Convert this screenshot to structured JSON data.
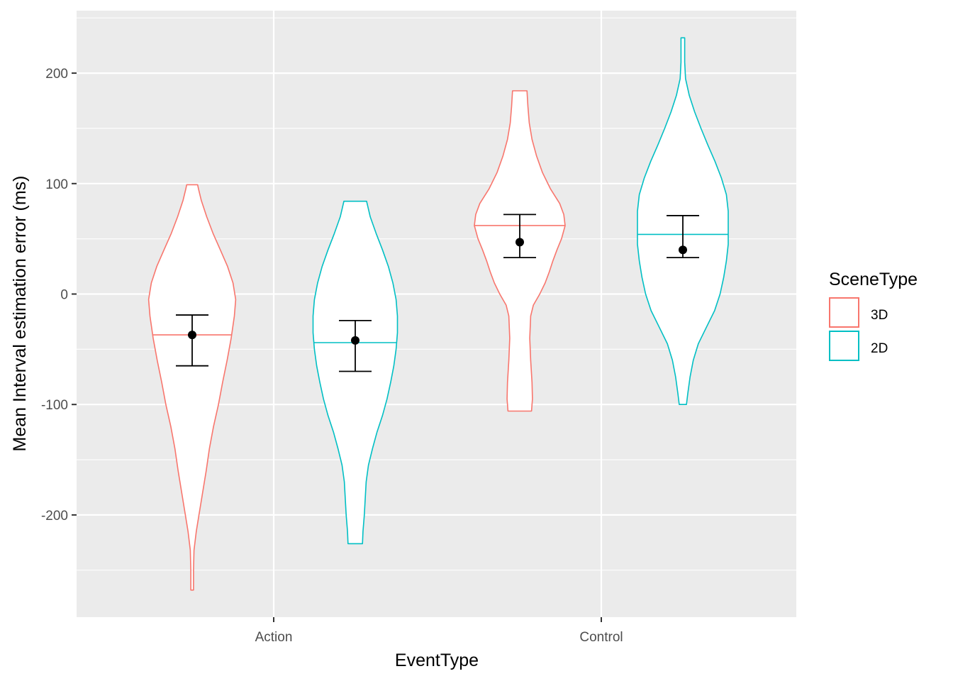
{
  "chart_data": {
    "type": "violin",
    "xlabel": "EventType",
    "ylabel": "Mean Interval estimation error (ms)",
    "categories": [
      "Action",
      "Control"
    ],
    "ylim": [
      -290,
      250
    ],
    "yticks": [
      -200,
      -100,
      0,
      100,
      200
    ],
    "grid": true,
    "legend": {
      "title": "SceneType",
      "position": "right",
      "entries": [
        {
          "label": "3D",
          "color": "#F8766D"
        },
        {
          "label": "2D",
          "color": "#00BFC4"
        }
      ]
    },
    "series": [
      {
        "name": "3D",
        "color": "#F8766D",
        "groups": [
          {
            "category": "Action",
            "min": -268,
            "max": 99,
            "median": -37,
            "mean": -37,
            "ci_low": -65,
            "ci_high": -19,
            "density": [
              [
                -268,
                0.03
              ],
              [
                -250,
                0.03
              ],
              [
                -232,
                0.04
              ],
              [
                -215,
                0.09
              ],
              [
                -200,
                0.15
              ],
              [
                -180,
                0.23
              ],
              [
                -160,
                0.31
              ],
              [
                -140,
                0.38
              ],
              [
                -120,
                0.47
              ],
              [
                -100,
                0.58
              ],
              [
                -80,
                0.67
              ],
              [
                -60,
                0.77
              ],
              [
                -40,
                0.86
              ],
              [
                -20,
                0.93
              ],
              [
                -5,
                0.96
              ],
              [
                10,
                0.9
              ],
              [
                25,
                0.78
              ],
              [
                40,
                0.62
              ],
              [
                55,
                0.46
              ],
              [
                70,
                0.32
              ],
              [
                85,
                0.2
              ],
              [
                95,
                0.14
              ],
              [
                99,
                0.12
              ]
            ]
          },
          {
            "category": "Control",
            "min": -106,
            "max": 184,
            "median": 62,
            "mean": 47,
            "ci_low": 33,
            "ci_high": 72,
            "density": [
              [
                -106,
                0.26
              ],
              [
                -95,
                0.28
              ],
              [
                -80,
                0.27
              ],
              [
                -60,
                0.24
              ],
              [
                -40,
                0.22
              ],
              [
                -20,
                0.24
              ],
              [
                -10,
                0.3
              ],
              [
                0,
                0.44
              ],
              [
                10,
                0.56
              ],
              [
                20,
                0.65
              ],
              [
                30,
                0.73
              ],
              [
                40,
                0.82
              ],
              [
                50,
                0.92
              ],
              [
                62,
                1.0
              ],
              [
                72,
                0.97
              ],
              [
                82,
                0.88
              ],
              [
                95,
                0.68
              ],
              [
                110,
                0.5
              ],
              [
                125,
                0.37
              ],
              [
                140,
                0.27
              ],
              [
                155,
                0.21
              ],
              [
                170,
                0.18
              ],
              [
                184,
                0.16
              ]
            ]
          }
        ]
      },
      {
        "name": "2D",
        "color": "#00BFC4",
        "groups": [
          {
            "category": "Action",
            "min": -226,
            "max": 84,
            "median": -44,
            "mean": -42,
            "ci_low": -70,
            "ci_high": -24,
            "density": [
              [
                -226,
                0.16
              ],
              [
                -215,
                0.17
              ],
              [
                -200,
                0.2
              ],
              [
                -185,
                0.22
              ],
              [
                -170,
                0.24
              ],
              [
                -155,
                0.29
              ],
              [
                -140,
                0.38
              ],
              [
                -125,
                0.48
              ],
              [
                -110,
                0.6
              ],
              [
                -95,
                0.7
              ],
              [
                -80,
                0.78
              ],
              [
                -65,
                0.85
              ],
              [
                -50,
                0.9
              ],
              [
                -35,
                0.93
              ],
              [
                -20,
                0.93
              ],
              [
                -5,
                0.9
              ],
              [
                10,
                0.83
              ],
              [
                25,
                0.73
              ],
              [
                40,
                0.6
              ],
              [
                55,
                0.46
              ],
              [
                70,
                0.33
              ],
              [
                84,
                0.25
              ]
            ]
          },
          {
            "category": "Control",
            "min": -100,
            "max": 232,
            "median": 54,
            "mean": 40,
            "ci_low": 33,
            "ci_high": 71,
            "density": [
              [
                -100,
                0.08
              ],
              [
                -90,
                0.11
              ],
              [
                -75,
                0.16
              ],
              [
                -60,
                0.23
              ],
              [
                -45,
                0.34
              ],
              [
                -30,
                0.52
              ],
              [
                -15,
                0.7
              ],
              [
                0,
                0.82
              ],
              [
                15,
                0.9
              ],
              [
                30,
                0.96
              ],
              [
                45,
                1.0
              ],
              [
                60,
                1.0
              ],
              [
                75,
                1.0
              ],
              [
                90,
                0.96
              ],
              [
                105,
                0.85
              ],
              [
                120,
                0.71
              ],
              [
                135,
                0.55
              ],
              [
                150,
                0.4
              ],
              [
                165,
                0.26
              ],
              [
                180,
                0.14
              ],
              [
                195,
                0.06
              ],
              [
                210,
                0.04
              ],
              [
                232,
                0.04
              ]
            ]
          }
        ]
      }
    ]
  }
}
